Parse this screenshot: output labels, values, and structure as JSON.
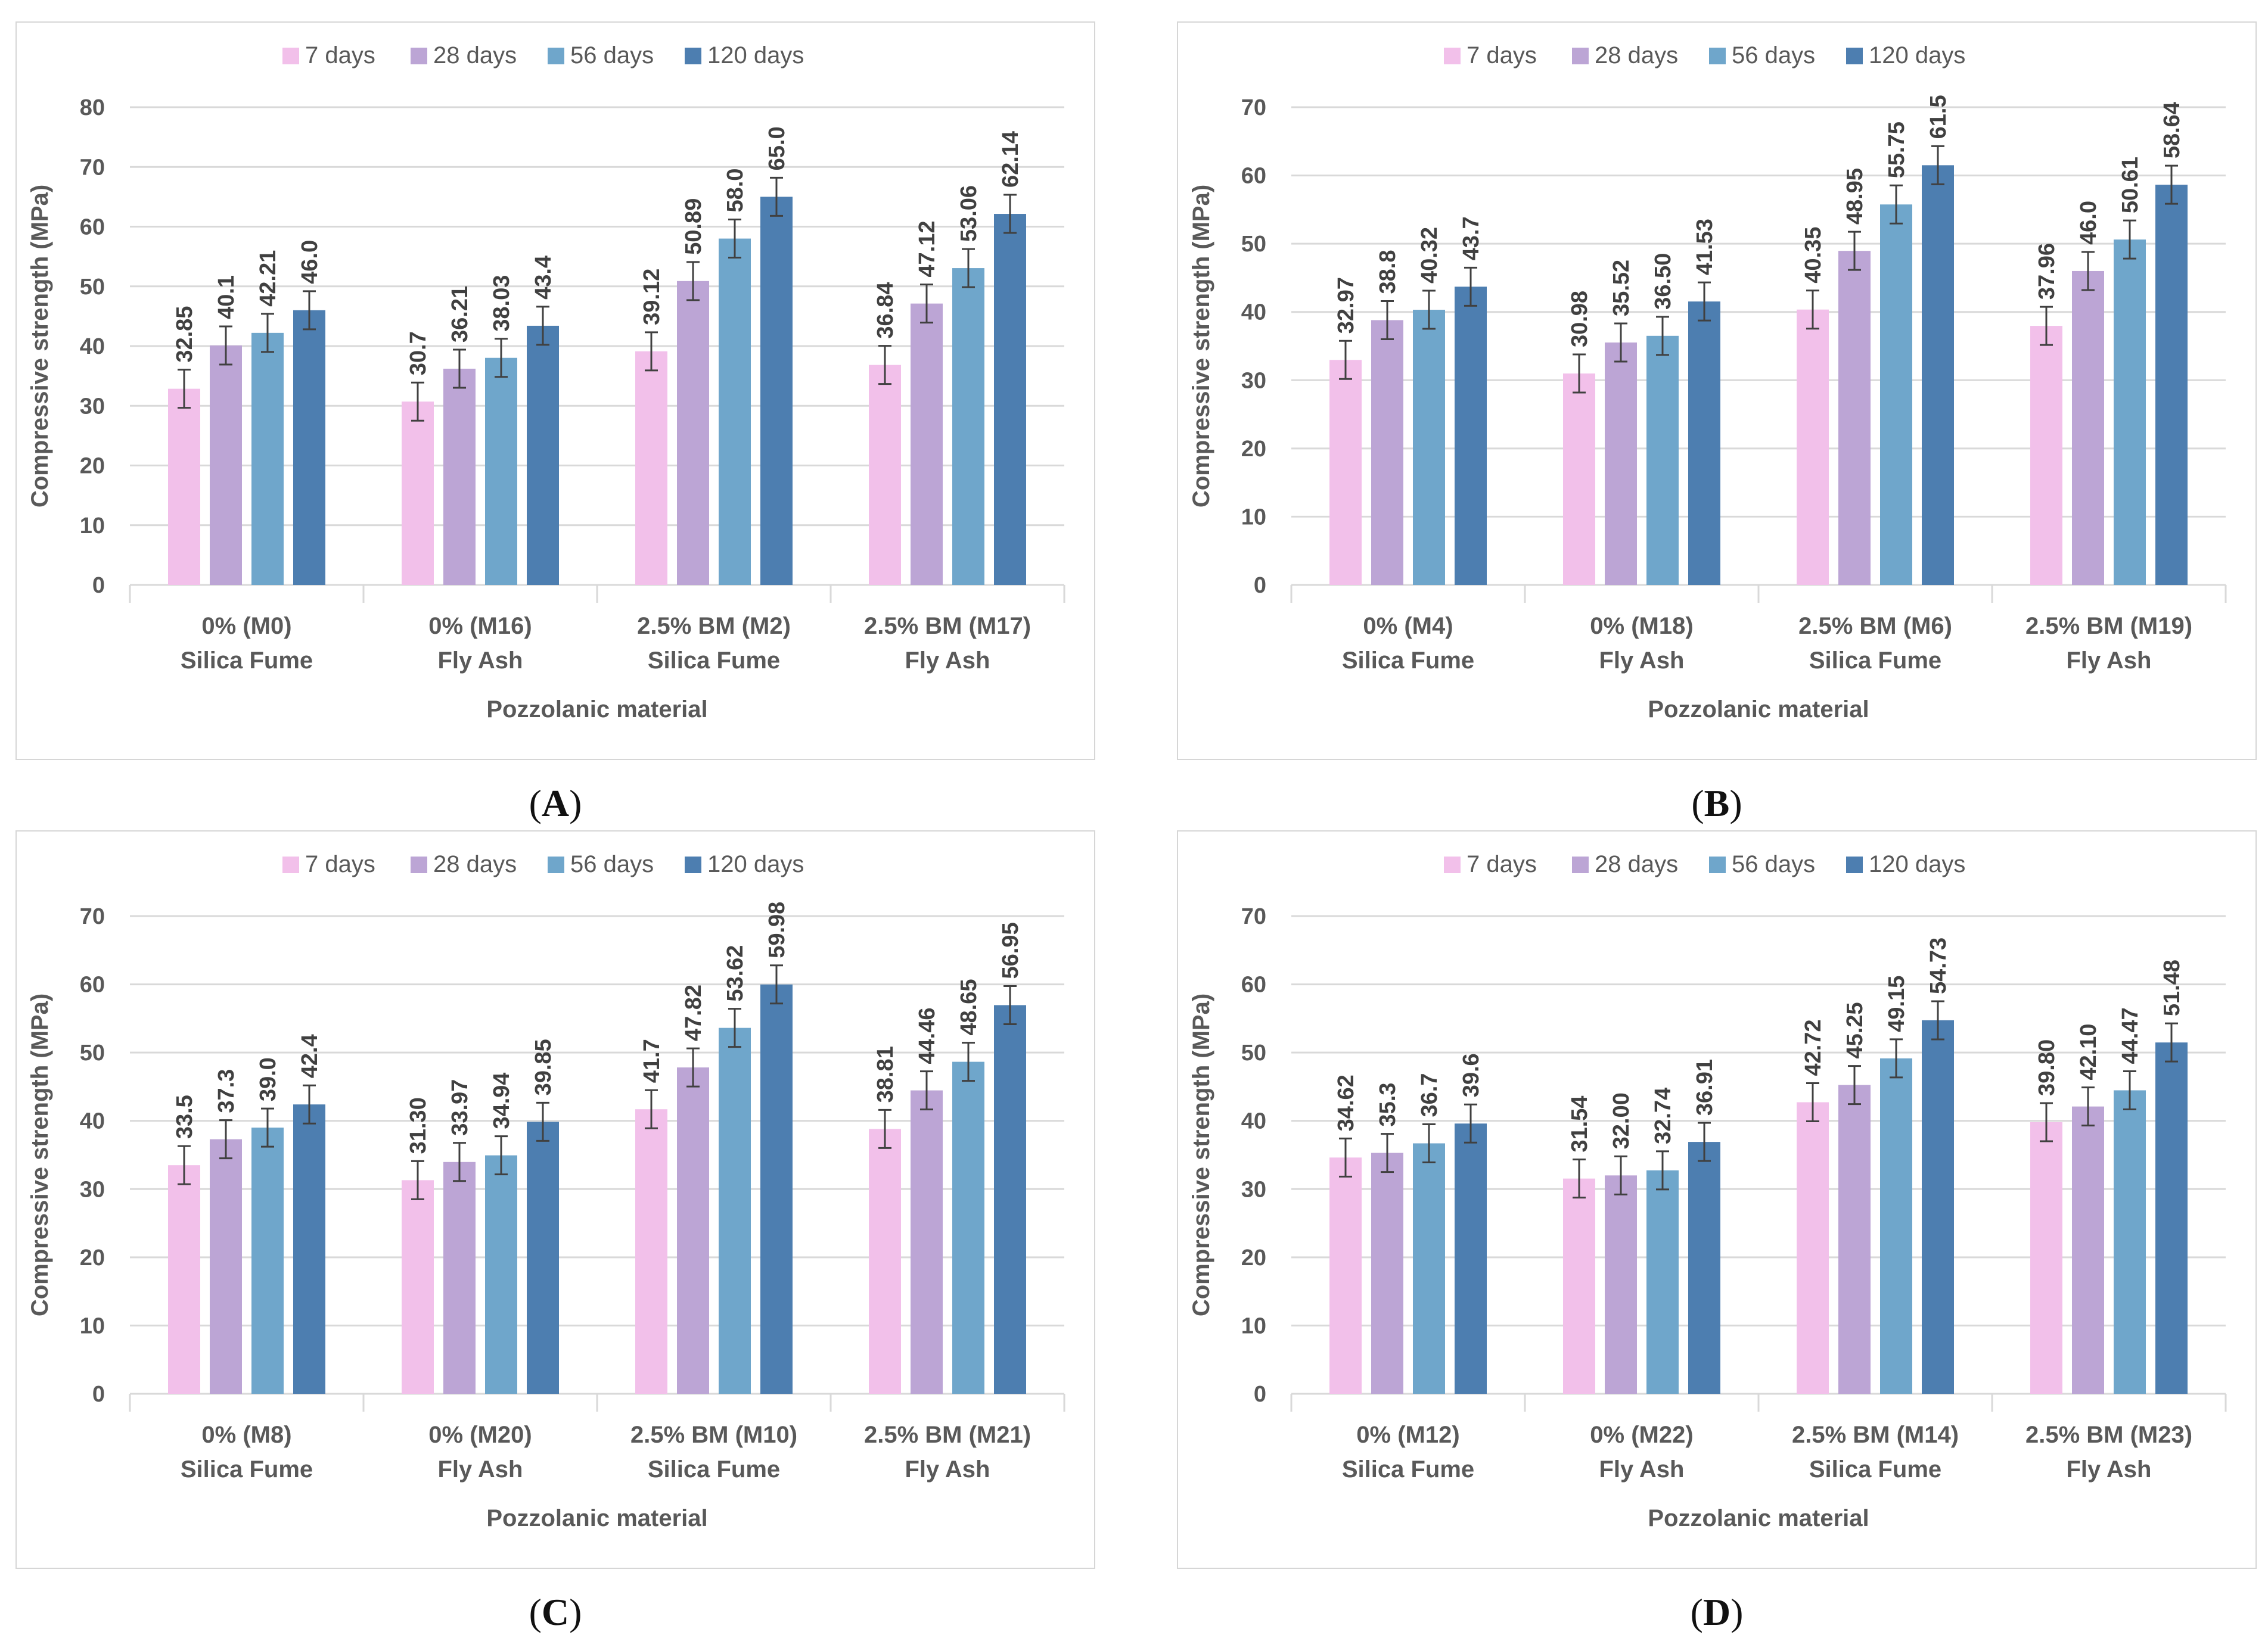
{
  "panels": [
    {
      "label": "A",
      "chart_data": {
        "type": "bar",
        "xlabel": "Pozzolanic material",
        "ylabel": "Compressive strength (MPa)",
        "ylim": [
          0,
          80
        ],
        "ystep": 10,
        "legend_position": "top",
        "grid": true,
        "categories": [
          {
            "line1": "0% (M0)",
            "line2": "Silica Fume"
          },
          {
            "line1": "0% (M16)",
            "line2": "Fly Ash"
          },
          {
            "line1": "2.5% BM (M2)",
            "line2": "Silica Fume"
          },
          {
            "line1": "2.5% BM (M17)",
            "line2": "Fly Ash"
          }
        ],
        "series": [
          {
            "name": "7 days",
            "color": "#f2c0ea",
            "values": [
              32.85,
              30.7,
              39.12,
              36.84
            ],
            "labels": [
              "32.85",
              "30.7",
              "39.12",
              "36.84"
            ]
          },
          {
            "name": "28 days",
            "color": "#bca5d5",
            "values": [
              40.1,
              36.21,
              50.89,
              47.12
            ],
            "labels": [
              "40.1",
              "36.21",
              "50.89",
              "47.12"
            ]
          },
          {
            "name": "56 days",
            "color": "#6fa6cb",
            "values": [
              42.21,
              38.03,
              58.0,
              53.06
            ],
            "labels": [
              "42.21",
              "38.03",
              "58.0",
              "53.06"
            ]
          },
          {
            "name": "120 days",
            "color": "#4d7eb0",
            "values": [
              46.0,
              43.4,
              65.0,
              62.14
            ],
            "labels": [
              "46.0",
              "43.4",
              "65.0",
              "62.14"
            ]
          }
        ]
      }
    },
    {
      "label": "B",
      "chart_data": {
        "type": "bar",
        "xlabel": "Pozzolanic material",
        "ylabel": "Compressive strength (MPa)",
        "ylim": [
          0,
          70
        ],
        "ystep": 10,
        "legend_position": "top",
        "grid": true,
        "categories": [
          {
            "line1": "0% (M4)",
            "line2": "Silica Fume"
          },
          {
            "line1": "0% (M18)",
            "line2": "Fly Ash"
          },
          {
            "line1": "2.5% BM (M6)",
            "line2": "Silica Fume"
          },
          {
            "line1": "2.5% BM (M19)",
            "line2": "Fly Ash"
          }
        ],
        "series": [
          {
            "name": "7 days",
            "color": "#f2c0ea",
            "values": [
              32.97,
              30.98,
              40.35,
              37.96
            ],
            "labels": [
              "32.97",
              "30.98",
              "40.35",
              "37.96"
            ]
          },
          {
            "name": "28 days",
            "color": "#bca5d5",
            "values": [
              38.8,
              35.52,
              48.95,
              46.0
            ],
            "labels": [
              "38.8",
              "35.52",
              "48.95",
              "46.0"
            ]
          },
          {
            "name": "56 days",
            "color": "#6fa6cb",
            "values": [
              40.32,
              36.5,
              55.75,
              50.61
            ],
            "labels": [
              "40.32",
              "36.50",
              "55.75",
              "50.61"
            ]
          },
          {
            "name": "120 days",
            "color": "#4d7eb0",
            "values": [
              43.7,
              41.53,
              61.5,
              58.64
            ],
            "labels": [
              "43.7",
              "41.53",
              "61.5",
              "58.64"
            ]
          }
        ]
      }
    },
    {
      "label": "C",
      "chart_data": {
        "type": "bar",
        "xlabel": "Pozzolanic material",
        "ylabel": "Compressive strength (MPa)",
        "ylim": [
          0,
          70
        ],
        "ystep": 10,
        "legend_position": "top",
        "grid": true,
        "categories": [
          {
            "line1": "0% (M8)",
            "line2": "Silica Fume"
          },
          {
            "line1": "0% (M20)",
            "line2": "Fly Ash"
          },
          {
            "line1": "2.5% BM (M10)",
            "line2": "Silica Fume"
          },
          {
            "line1": "2.5% BM (M21)",
            "line2": "Fly Ash"
          }
        ],
        "series": [
          {
            "name": "7 days",
            "color": "#f2c0ea",
            "values": [
              33.5,
              31.3,
              41.7,
              38.81
            ],
            "labels": [
              "33.5",
              "31.30",
              "41.7",
              "38.81"
            ]
          },
          {
            "name": "28 days",
            "color": "#bca5d5",
            "values": [
              37.3,
              33.97,
              47.82,
              44.46
            ],
            "labels": [
              "37.3",
              "33.97",
              "47.82",
              "44.46"
            ]
          },
          {
            "name": "56 days",
            "color": "#6fa6cb",
            "values": [
              39.0,
              34.94,
              53.62,
              48.65
            ],
            "labels": [
              "39.0",
              "34.94",
              "53.62",
              "48.65"
            ]
          },
          {
            "name": "120 days",
            "color": "#4d7eb0",
            "values": [
              42.4,
              39.85,
              59.98,
              56.95
            ],
            "labels": [
              "42.4",
              "39.85",
              "59.98",
              "56.95"
            ]
          }
        ]
      }
    },
    {
      "label": "D",
      "chart_data": {
        "type": "bar",
        "xlabel": "Pozzolanic material",
        "ylabel": "Compressive strength (MPa)",
        "ylim": [
          0,
          70
        ],
        "ystep": 10,
        "legend_position": "top",
        "grid": true,
        "categories": [
          {
            "line1": "0% (M12)",
            "line2": "Silica Fume"
          },
          {
            "line1": "0% (M22)",
            "line2": "Fly Ash"
          },
          {
            "line1": "2.5% BM (M14)",
            "line2": "Silica Fume"
          },
          {
            "line1": "2.5% BM (M23)",
            "line2": "Fly Ash"
          }
        ],
        "series": [
          {
            "name": "7 days",
            "color": "#f2c0ea",
            "values": [
              34.62,
              31.54,
              42.72,
              39.8
            ],
            "labels": [
              "34.62",
              "31.54",
              "42.72",
              "39.80"
            ]
          },
          {
            "name": "28 days",
            "color": "#bca5d5",
            "values": [
              35.3,
              32.0,
              45.25,
              42.1
            ],
            "labels": [
              "35.3",
              "32.00",
              "45.25",
              "42.10"
            ]
          },
          {
            "name": "56 days",
            "color": "#6fa6cb",
            "values": [
              36.7,
              32.74,
              49.15,
              44.47
            ],
            "labels": [
              "36.7",
              "32.74",
              "49.15",
              "44.47"
            ]
          },
          {
            "name": "120 days",
            "color": "#4d7eb0",
            "values": [
              39.6,
              36.91,
              54.73,
              51.48
            ],
            "labels": [
              "39.6",
              "36.91",
              "54.73",
              "51.48"
            ]
          }
        ]
      }
    }
  ]
}
